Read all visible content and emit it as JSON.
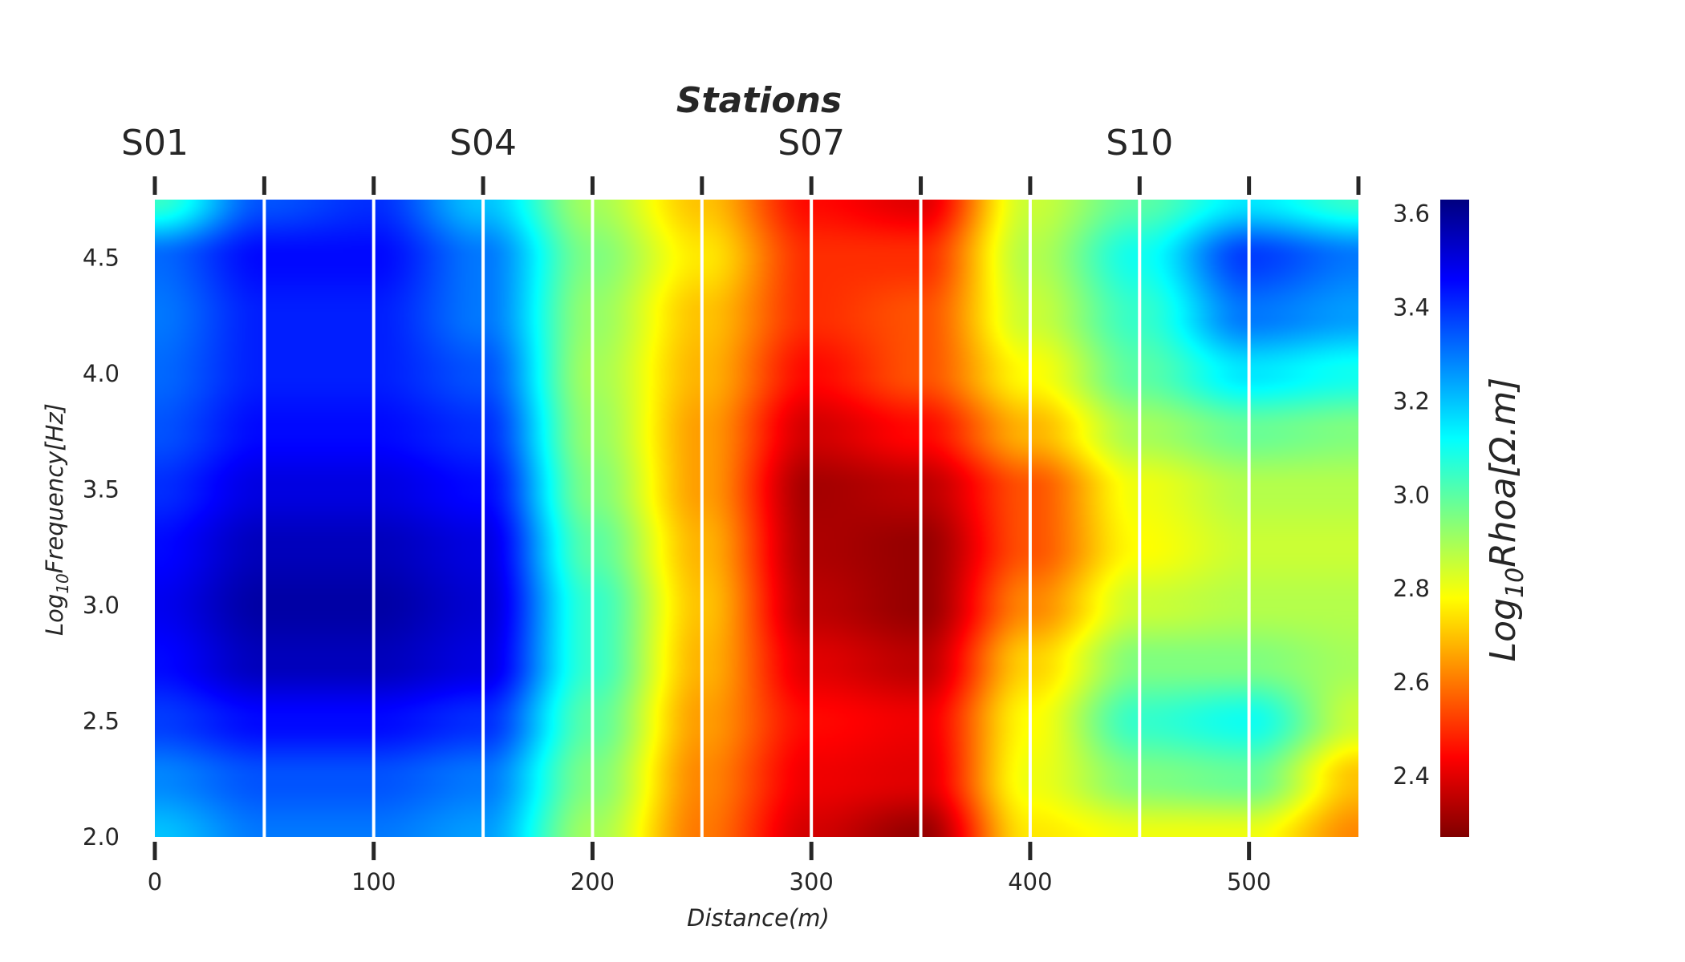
{
  "chart_data": {
    "type": "heatmap",
    "title": "Stations",
    "xlabel": "Distance(m)",
    "ylabel": "Log10Frequency[Hz]",
    "ylabel_parts": {
      "prefix": "Log",
      "sub": "10",
      "main": "Frequency[Hz]"
    },
    "colorbar_label": "Log10Rhoa[Ω.m]",
    "colorbar_label_parts": {
      "prefix": "Log",
      "sub": "10",
      "main": "Rhoa[Ω.m]"
    },
    "colormap": "jet_r",
    "xlim": [
      0,
      550
    ],
    "ylim": [
      2.0,
      4.75
    ],
    "clim": [
      2.27,
      3.63
    ],
    "x_ticks": [
      0,
      100,
      200,
      300,
      400,
      500
    ],
    "x_tick_labels": [
      "0",
      "100",
      "200",
      "300",
      "400",
      "500"
    ],
    "y_ticks": [
      2.0,
      2.5,
      3.0,
      3.5,
      4.0,
      4.5
    ],
    "y_tick_labels": [
      "2.0",
      "2.5",
      "3.0",
      "3.5",
      "4.0",
      "4.5"
    ],
    "colorbar_ticks": [
      2.4,
      2.6,
      2.8,
      3.0,
      3.2,
      3.4,
      3.6
    ],
    "colorbar_tick_labels": [
      "2.4",
      "2.6",
      "2.8",
      "3.0",
      "3.2",
      "3.4",
      "3.6"
    ],
    "station_positions": [
      0,
      50,
      100,
      150,
      200,
      250,
      300,
      350,
      400,
      450,
      500,
      550
    ],
    "station_labels": [
      {
        "x": 0,
        "label": "S01"
      },
      {
        "x": 150,
        "label": "S04"
      },
      {
        "x": 300,
        "label": "S07"
      },
      {
        "x": 450,
        "label": "S10"
      }
    ],
    "station_divider_lines": [
      50,
      100,
      150,
      200,
      250,
      300,
      350,
      400,
      450,
      500
    ],
    "grid": {
      "x": [
        0,
        50,
        100,
        150,
        200,
        250,
        300,
        350,
        400,
        450,
        500,
        550
      ],
      "y": [
        2.0,
        2.25,
        2.5,
        2.75,
        3.0,
        3.25,
        3.5,
        3.75,
        4.0,
        4.25,
        4.5,
        4.75
      ],
      "values": [
        [
          3.2,
          3.3,
          3.3,
          3.25,
          2.9,
          2.6,
          2.38,
          2.3,
          2.75,
          2.8,
          2.8,
          2.62
        ],
        [
          3.28,
          3.35,
          3.35,
          3.3,
          2.95,
          2.62,
          2.42,
          2.4,
          2.8,
          2.95,
          2.98,
          2.7
        ],
        [
          3.38,
          3.45,
          3.45,
          3.4,
          3.0,
          2.65,
          2.45,
          2.42,
          2.78,
          3.05,
          3.1,
          2.85
        ],
        [
          3.45,
          3.55,
          3.55,
          3.5,
          3.05,
          2.68,
          2.4,
          2.35,
          2.72,
          2.95,
          2.95,
          2.9
        ],
        [
          3.48,
          3.58,
          3.58,
          3.52,
          3.05,
          2.7,
          2.35,
          2.3,
          2.62,
          2.85,
          2.88,
          2.88
        ],
        [
          3.45,
          3.55,
          3.55,
          3.5,
          3.0,
          2.68,
          2.33,
          2.3,
          2.55,
          2.78,
          2.85,
          2.85
        ],
        [
          3.4,
          3.5,
          3.5,
          3.45,
          2.95,
          2.65,
          2.32,
          2.35,
          2.55,
          2.8,
          2.88,
          2.88
        ],
        [
          3.35,
          3.45,
          3.45,
          3.4,
          2.92,
          2.65,
          2.38,
          2.45,
          2.68,
          2.9,
          2.98,
          2.95
        ],
        [
          3.32,
          3.42,
          3.42,
          3.35,
          2.9,
          2.68,
          2.45,
          2.55,
          2.78,
          3.0,
          3.15,
          3.1
        ],
        [
          3.3,
          3.42,
          3.42,
          3.3,
          2.92,
          2.7,
          2.5,
          2.55,
          2.85,
          3.05,
          3.3,
          3.25
        ],
        [
          3.32,
          3.45,
          3.45,
          3.3,
          2.95,
          2.75,
          2.5,
          2.5,
          2.88,
          3.1,
          3.38,
          3.3
        ],
        [
          3.05,
          3.35,
          3.4,
          3.2,
          2.9,
          2.7,
          2.45,
          2.4,
          2.85,
          3.0,
          3.15,
          3.05
        ]
      ]
    }
  }
}
